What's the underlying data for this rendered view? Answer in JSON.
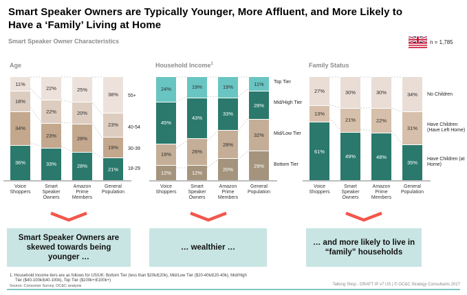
{
  "header": {
    "title_line1": "Smart Speaker Owners are Typically Younger, More Affluent, and More Likely to",
    "title_line2": "Have a ‘Family’ Living at Home",
    "subtitle": "Smart Speaker Owner Characteristics",
    "sample_size": "n = 1,785",
    "flag_icon": "uk-us-flag"
  },
  "colors": {
    "teal_dark": "#2a796c",
    "teal_light": "#69c5c1",
    "arrow_accent": "#f2574b",
    "takeaway_bg": "#c8e5e3",
    "bottom_rule": "#7bc9c4",
    "connector": "#d2d2d2",
    "axis": "#bdbdbd"
  },
  "chart_data": [
    {
      "type": "bar",
      "subtype": "100%-stacked-column",
      "title": "Age",
      "note_marker": "",
      "categories": [
        "Voice Shoppers",
        "Smart Speaker Owners",
        "Amazon Prime Members",
        "General Population"
      ],
      "series": [
        {
          "name": "55+",
          "values": [
            11,
            22,
            25,
            38
          ],
          "color": "#ede2db",
          "label_color": "#2e2e2e"
        },
        {
          "name": "40-54",
          "values": [
            18,
            22,
            20,
            23
          ],
          "color": "#ddcdc0",
          "label_color": "#2e2e2e"
        },
        {
          "name": "30-39",
          "values": [
            34,
            23,
            28,
            19
          ],
          "color": "#c3a88e",
          "label_color": "#2e2e2e"
        },
        {
          "name": "18-29",
          "values": [
            36,
            33,
            28,
            21
          ],
          "color": "#2a796c",
          "label_color": "#ffffff"
        }
      ]
    },
    {
      "type": "bar",
      "subtype": "100%-stacked-column",
      "title": "Household Income",
      "note_marker": "1",
      "categories": [
        "Voice Shoppers",
        "Smart Speaker Owners",
        "Amazon Prime Members",
        "General Population"
      ],
      "series": [
        {
          "name": "Top Tier",
          "values": [
            24,
            19,
            19,
            11
          ],
          "color": "#69c5c1",
          "label_color": "#2e2e2e"
        },
        {
          "name": "Mid/High Tier",
          "values": [
            45,
            43,
            33,
            28
          ],
          "color": "#2a796c",
          "label_color": "#ffffff"
        },
        {
          "name": "Mid/Low Tier",
          "values": [
            19,
            26,
            28,
            32
          ],
          "color": "#c4ae97",
          "label_color": "#2e2e2e"
        },
        {
          "name": "Bottom Tier",
          "values": [
            12,
            12,
            20,
            29
          ],
          "color": "#a5947d",
          "label_color": "#ffffff"
        }
      ]
    },
    {
      "type": "bar",
      "subtype": "100%-stacked-column",
      "title": "Family Status",
      "note_marker": "",
      "categories": [
        "Voice Shoppers",
        "Smart Speaker Owners",
        "Amazon Prime Members",
        "General Population"
      ],
      "series": [
        {
          "name": "No Children",
          "values": [
            27,
            30,
            30,
            34
          ],
          "color": "#e9ddd6",
          "label_color": "#2e2e2e"
        },
        {
          "name": "Have Children (Have Left Home)",
          "values": [
            13,
            21,
            22,
            31
          ],
          "color": "#d6c0ab",
          "label_color": "#2e2e2e"
        },
        {
          "name": "Have Children (at Home)",
          "values": [
            61,
            49,
            48,
            35
          ],
          "color": "#2a796c",
          "label_color": "#ffffff"
        }
      ]
    }
  ],
  "takeaways": [
    {
      "text": "Smart Speaker Owners are skewed towards being younger …"
    },
    {
      "text": "… wealthier …"
    },
    {
      "text": "… and more likely to live in “family” households"
    }
  ],
  "footnotes": {
    "footnote": "1. Household Income tiers are as follows for US/UK: Bottom Tier (less than $20k/£20k), Mid/Low Tier ($20-40k/£20-40k), Mid/High Tier ($40-100k/£40-100k), Top Tier ($100k+/£100k+)",
    "source": "Source: Consumer Survey, OC&C analysis",
    "footer_note": "Talking Shop - DRAFT IP v7 US | © OC&C Strategy Consultants 2017"
  }
}
